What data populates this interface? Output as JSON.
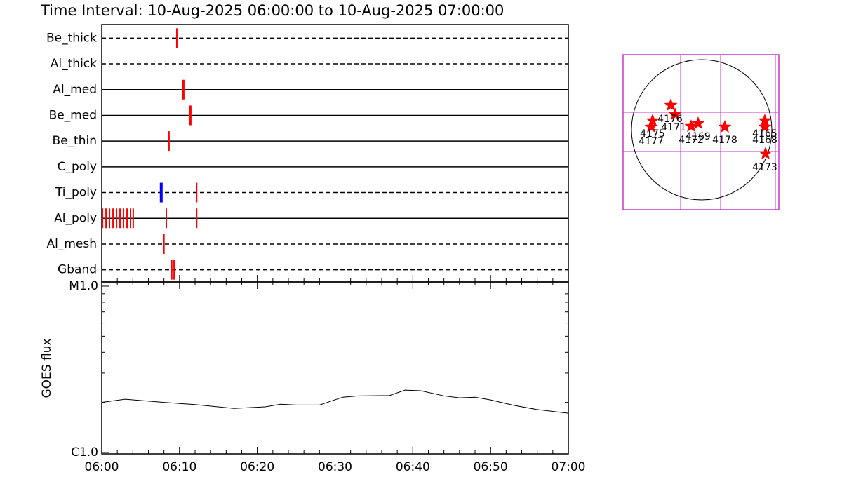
{
  "title": "Time Interval: 10-Aug-2025 06:00:00 to 10-Aug-2025 07:00:00",
  "chart_data": [
    {
      "type": "timeline",
      "xlim": [
        0,
        60
      ],
      "xminor_step": 2,
      "filters": [
        {
          "name": "Be_thick",
          "style": "dashed",
          "events": [
            9.65
          ],
          "colors": [
            "#ff0000"
          ]
        },
        {
          "name": "Al_thick",
          "style": "dashed",
          "events": [],
          "colors": []
        },
        {
          "name": "Al_med",
          "style": "solid",
          "events": [
            10.4,
            10.55
          ],
          "colors": [
            "#ff0000",
            "#ff0000"
          ]
        },
        {
          "name": "Be_med",
          "style": "solid",
          "events": [
            11.3,
            11.45
          ],
          "colors": [
            "#ff0000",
            "#ff0000"
          ]
        },
        {
          "name": "Be_thin",
          "style": "solid",
          "events": [
            8.65
          ],
          "colors": [
            "#ff0000"
          ]
        },
        {
          "name": "C_poly",
          "style": "solid",
          "events": [],
          "colors": []
        },
        {
          "name": "Ti_poly",
          "style": "dashed",
          "events": [
            7.65,
            12.2
          ],
          "colors": [
            "#0000ff",
            "#ff0000"
          ]
        },
        {
          "name": "Al_poly",
          "style": "solid",
          "events": [
            0.1,
            0.55,
            1.0,
            1.45,
            1.9,
            2.35,
            2.8,
            3.25,
            3.7,
            4.05,
            8.3,
            12.2
          ],
          "colors": [
            "#ff0000",
            "#ff0000",
            "#ff0000",
            "#ff0000",
            "#ff0000",
            "#ff0000",
            "#ff0000",
            "#ff0000",
            "#ff0000",
            "#ff0000",
            "#ff0000",
            "#ff0000"
          ]
        },
        {
          "name": "Al_mesh",
          "style": "dashed",
          "events": [
            8.0
          ],
          "colors": [
            "#ff0000"
          ]
        },
        {
          "name": "Gband",
          "style": "dashed",
          "events": [
            9.0,
            9.3
          ],
          "colors": [
            "#ff0000",
            "#ff0000"
          ]
        }
      ]
    },
    {
      "type": "line",
      "ylabel": "GOES flux",
      "log_scale": true,
      "color": "#000000",
      "xminor_step": 2,
      "xlim": [
        0,
        60
      ],
      "ylim": [
        1e-06,
        1e-05
      ],
      "xticks": [
        {
          "value": 0,
          "label": "06:00"
        },
        {
          "value": 10,
          "label": "06:10"
        },
        {
          "value": 20,
          "label": "06:20"
        },
        {
          "value": 30,
          "label": "06:30"
        },
        {
          "value": 40,
          "label": "06:40"
        },
        {
          "value": 50,
          "label": "06:50"
        },
        {
          "value": 60,
          "label": "07:00"
        }
      ],
      "yticks": [
        {
          "value": 1e-06,
          "label": "C1.0"
        },
        {
          "value": 1e-05,
          "label": "M1.0"
        }
      ],
      "x": [
        0,
        3,
        8,
        12,
        17,
        21,
        23,
        25,
        28,
        31,
        33,
        37,
        39,
        41,
        44,
        46,
        48,
        50,
        53,
        56,
        60
      ],
      "values": [
        2e-06,
        2.09e-06,
        2e-06,
        1.94e-06,
        1.84e-06,
        1.88e-06,
        1.95e-06,
        1.93e-06,
        1.93e-06,
        2.15e-06,
        2.19e-06,
        2.2e-06,
        2.37e-06,
        2.35e-06,
        2.19e-06,
        2.13e-06,
        2.15e-06,
        2.07e-06,
        1.92e-06,
        1.81e-06,
        1.72e-06
      ]
    },
    {
      "type": "map",
      "star_color": "#ff0000",
      "grid_color": "#cc33cc",
      "regions": [
        "4176",
        "4171",
        "4175",
        "4177",
        "4172",
        "4169",
        "4178",
        "4165",
        "4168",
        "4173"
      ]
    }
  ]
}
